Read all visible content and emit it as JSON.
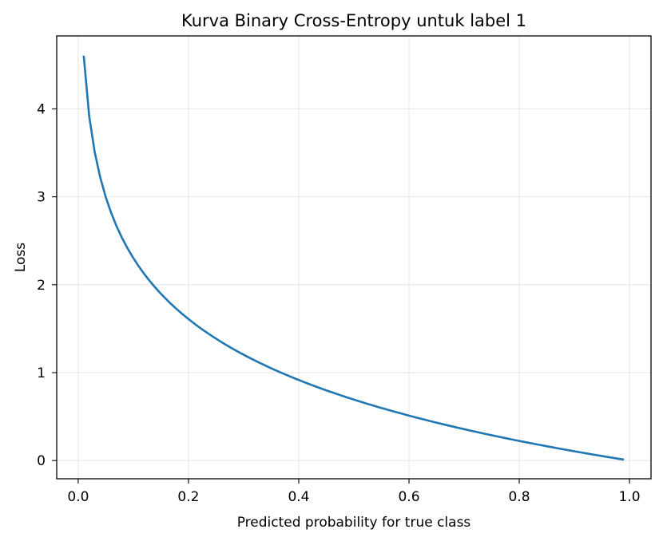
{
  "chart_data": {
    "type": "line",
    "title": "Kurva Binary Cross-Entropy untuk label 1",
    "xlabel": "Predicted probability for true class",
    "ylabel": "Loss",
    "xlim": [
      -0.039,
      1.039
    ],
    "ylim": [
      -0.2073,
      4.8302
    ],
    "x_ticks": [
      0.0,
      0.2,
      0.4,
      0.6,
      0.8,
      1.0
    ],
    "x_tick_labels": [
      "0.0",
      "0.2",
      "0.4",
      "0.6",
      "0.8",
      "1.0"
    ],
    "y_ticks": [
      0,
      1,
      2,
      3,
      4
    ],
    "y_tick_labels": [
      "0",
      "1",
      "2",
      "3",
      "4"
    ],
    "grid": true,
    "legend": "none",
    "series": [
      {
        "color": "#1f77b4",
        "x_range": [
          0.01,
          0.99
        ],
        "points": 100,
        "formula": "-ln(p)"
      }
    ],
    "colors": {
      "line": "#1f77b4",
      "grid": "#e6e6e6",
      "axes": "#000000"
    }
  }
}
